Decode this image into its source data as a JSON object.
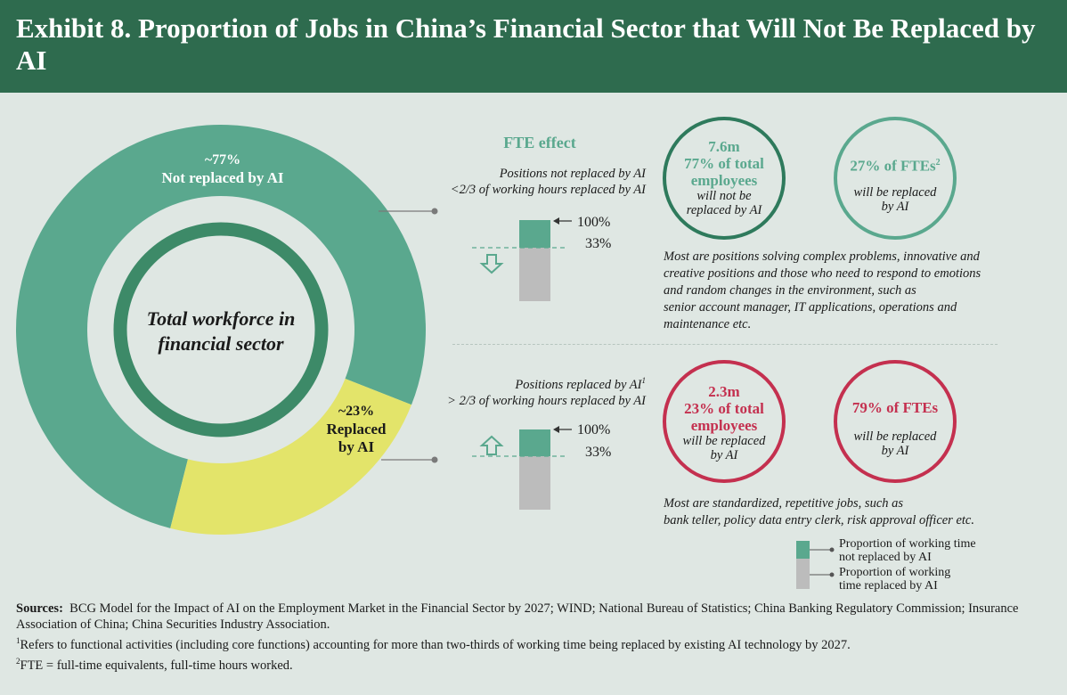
{
  "header": {
    "title": "Exhibit 8. Proportion of Jobs in China’s Financial Sector that Will Not Be Replaced by AI"
  },
  "donut": {
    "center_line1": "Total workforce in",
    "center_line2": "financial sector",
    "not_replaced_pct": "~77%",
    "not_replaced_label": "Not replaced by AI",
    "replaced_pct": "~23%",
    "replaced_label_1": "Replaced",
    "replaced_label_2": "by AI"
  },
  "fte": {
    "title": "FTE effect",
    "top_desc_1": "Positions not replaced by AI",
    "top_desc_2": "<2/3 of working hours replaced by AI",
    "bottom_desc_1": "Positions replaced by AI",
    "bottom_desc_sup": "1",
    "bottom_desc_2": "> 2/3 of working hours replaced by AI",
    "label_100": "100%",
    "label_33": "33%"
  },
  "circles": {
    "top_left": {
      "line1": "7.6m",
      "line2": "77% of total",
      "line3": "employees",
      "line4": "will not be",
      "line5": "replaced by AI"
    },
    "top_right": {
      "line1": "27% of FTEs",
      "sup": "2",
      "line2": "will be replaced",
      "line3": "by AI"
    },
    "bottom_left": {
      "line1": "2.3m",
      "line2": "23% of total",
      "line3": "employees",
      "line4": "will be replaced",
      "line5": "by AI"
    },
    "bottom_right": {
      "line1": "79% of FTEs",
      "line2": "will be replaced",
      "line3": "by AI"
    }
  },
  "notes": {
    "top_1": "Most are positions solving complex problems, innovative and",
    "top_2": "creative positions and those who need to respond to emotions",
    "top_3": "and random changes in the environment, such as",
    "top_4": "senior account manager, IT applications, operations and",
    "top_5": "maintenance etc.",
    "bottom_1": "Most are standardized, repetitive jobs, such as",
    "bottom_2": "bank teller, policy data entry clerk, risk approval officer etc."
  },
  "legend": {
    "item1_1": "Proportion of working time",
    "item1_2": "not replaced by AI",
    "item2_1": "Proportion of working",
    "item2_2": "time replaced by AI"
  },
  "sources": {
    "label": "Sources:",
    "text": "BCG Model for the Impact of AI on the Employment Market in the Financial Sector by 2027; WIND; National Bureau of Statistics; China Banking Regulatory Commission; Insurance Association of China; China Securities Industry Association.",
    "fn1_sup": "1",
    "fn1": "Refers to functional activities (including core functions) accounting for more than two-thirds of working time being replaced by existing AI technology by 2027.",
    "fn2_sup": "2",
    "fn2": "FTE = full-time equivalents, full-time hours worked."
  },
  "colors": {
    "green": "#5aa88e",
    "dark_green": "#2e6b4e",
    "yellow": "#e3e46a",
    "red": "#c4304f",
    "grey": "#bcbcbc",
    "background": "#dfe7e3"
  },
  "chart_data": {
    "type": "pie",
    "categories": [
      "Not replaced by AI",
      "Replaced by AI"
    ],
    "values": [
      77,
      23
    ],
    "units": "%"
  }
}
